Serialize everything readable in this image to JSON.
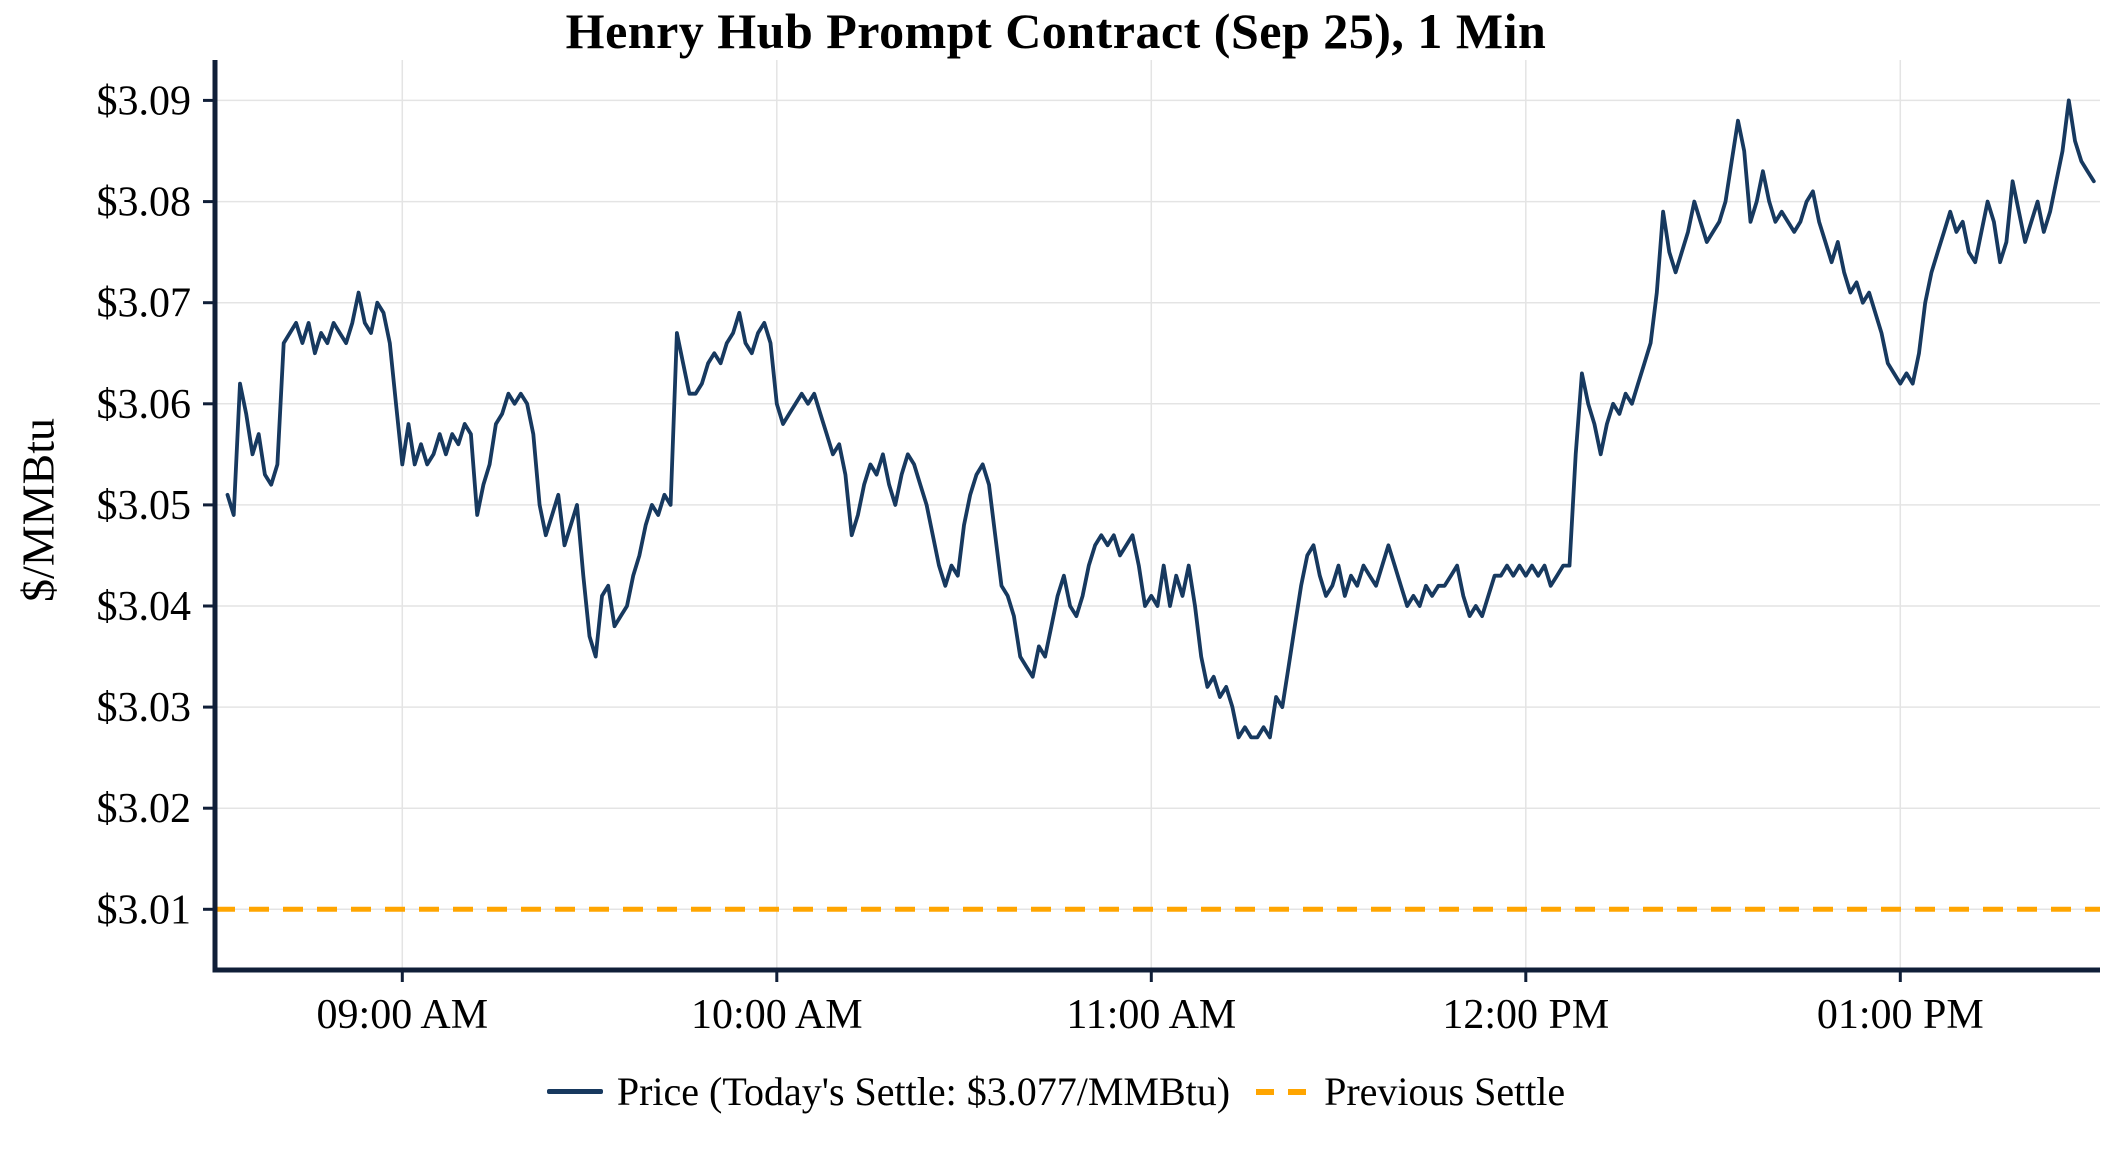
{
  "chart_data": {
    "type": "line",
    "title": "Henry Hub Prompt Contract (Sep 25), 1 Min",
    "xlabel": "",
    "ylabel": "$/MMBtu",
    "grid": true,
    "legend_position": "bottom",
    "x_unit": "minutes after 08:30 AM",
    "xlim": [
      0,
      302
    ],
    "ylim": [
      3.004,
      3.094
    ],
    "x_ticks": [
      {
        "t": 30,
        "label": "09:00 AM"
      },
      {
        "t": 90,
        "label": "10:00 AM"
      },
      {
        "t": 150,
        "label": "11:00 AM"
      },
      {
        "t": 210,
        "label": "12:00 PM"
      },
      {
        "t": 270,
        "label": "01:00 PM"
      }
    ],
    "y_ticks": [
      {
        "v": 3.01,
        "label": "$3.01"
      },
      {
        "v": 3.02,
        "label": "$3.02"
      },
      {
        "v": 3.03,
        "label": "$3.03"
      },
      {
        "v": 3.04,
        "label": "$3.04"
      },
      {
        "v": 3.05,
        "label": "$3.05"
      },
      {
        "v": 3.06,
        "label": "$3.06"
      },
      {
        "v": 3.07,
        "label": "$3.07"
      },
      {
        "v": 3.08,
        "label": "$3.08"
      },
      {
        "v": 3.09,
        "label": "$3.09"
      }
    ],
    "colors": {
      "axis": "#101f38",
      "grid": "#e4e4e4",
      "text": "#000000"
    },
    "todays_settle": 3.077,
    "previous_settle": 3.01,
    "series": [
      {
        "name": "Price (Today's Settle: $3.077/MMBtu)",
        "color": "#17395f",
        "style": "solid",
        "start_minute": 2,
        "interval_minutes": 1,
        "values": [
          3.051,
          3.049,
          3.062,
          3.059,
          3.055,
          3.057,
          3.053,
          3.052,
          3.054,
          3.066,
          3.067,
          3.068,
          3.066,
          3.068,
          3.065,
          3.067,
          3.066,
          3.068,
          3.067,
          3.066,
          3.068,
          3.071,
          3.068,
          3.067,
          3.07,
          3.069,
          3.066,
          3.06,
          3.054,
          3.058,
          3.054,
          3.056,
          3.054,
          3.055,
          3.057,
          3.055,
          3.057,
          3.056,
          3.058,
          3.057,
          3.049,
          3.052,
          3.054,
          3.058,
          3.059,
          3.061,
          3.06,
          3.061,
          3.06,
          3.057,
          3.05,
          3.047,
          3.049,
          3.051,
          3.046,
          3.048,
          3.05,
          3.043,
          3.037,
          3.035,
          3.041,
          3.042,
          3.038,
          3.039,
          3.04,
          3.043,
          3.045,
          3.048,
          3.05,
          3.049,
          3.051,
          3.05,
          3.067,
          3.064,
          3.061,
          3.061,
          3.062,
          3.064,
          3.065,
          3.064,
          3.066,
          3.067,
          3.069,
          3.066,
          3.065,
          3.067,
          3.068,
          3.066,
          3.06,
          3.058,
          3.059,
          3.06,
          3.061,
          3.06,
          3.061,
          3.059,
          3.057,
          3.055,
          3.056,
          3.053,
          3.047,
          3.049,
          3.052,
          3.054,
          3.053,
          3.055,
          3.052,
          3.05,
          3.053,
          3.055,
          3.054,
          3.052,
          3.05,
          3.047,
          3.044,
          3.042,
          3.044,
          3.043,
          3.048,
          3.051,
          3.053,
          3.054,
          3.052,
          3.047,
          3.042,
          3.041,
          3.039,
          3.035,
          3.034,
          3.033,
          3.036,
          3.035,
          3.038,
          3.041,
          3.043,
          3.04,
          3.039,
          3.041,
          3.044,
          3.046,
          3.047,
          3.046,
          3.047,
          3.045,
          3.046,
          3.047,
          3.044,
          3.04,
          3.041,
          3.04,
          3.044,
          3.04,
          3.043,
          3.041,
          3.044,
          3.04,
          3.035,
          3.032,
          3.033,
          3.031,
          3.032,
          3.03,
          3.027,
          3.028,
          3.027,
          3.027,
          3.028,
          3.027,
          3.031,
          3.03,
          3.034,
          3.038,
          3.042,
          3.045,
          3.046,
          3.043,
          3.041,
          3.042,
          3.044,
          3.041,
          3.043,
          3.042,
          3.044,
          3.043,
          3.042,
          3.044,
          3.046,
          3.044,
          3.042,
          3.04,
          3.041,
          3.04,
          3.042,
          3.041,
          3.042,
          3.042,
          3.043,
          3.044,
          3.041,
          3.039,
          3.04,
          3.039,
          3.041,
          3.043,
          3.043,
          3.044,
          3.043,
          3.044,
          3.043,
          3.044,
          3.043,
          3.044,
          3.042,
          3.043,
          3.044,
          3.044,
          3.055,
          3.063,
          3.06,
          3.058,
          3.055,
          3.058,
          3.06,
          3.059,
          3.061,
          3.06,
          3.062,
          3.064,
          3.066,
          3.071,
          3.079,
          3.075,
          3.073,
          3.075,
          3.077,
          3.08,
          3.078,
          3.076,
          3.077,
          3.078,
          3.08,
          3.084,
          3.088,
          3.085,
          3.078,
          3.08,
          3.083,
          3.08,
          3.078,
          3.079,
          3.078,
          3.077,
          3.078,
          3.08,
          3.081,
          3.078,
          3.076,
          3.074,
          3.076,
          3.073,
          3.071,
          3.072,
          3.07,
          3.071,
          3.069,
          3.067,
          3.064,
          3.063,
          3.062,
          3.063,
          3.062,
          3.065,
          3.07,
          3.073,
          3.075,
          3.077,
          3.079,
          3.077,
          3.078,
          3.075,
          3.074,
          3.077,
          3.08,
          3.078,
          3.074,
          3.076,
          3.082,
          3.079,
          3.076,
          3.078,
          3.08,
          3.077,
          3.079,
          3.082,
          3.085,
          3.09,
          3.086,
          3.084,
          3.083,
          3.082
        ]
      },
      {
        "name": "Previous Settle",
        "color": "#FFA500",
        "style": "dashed",
        "constant_value": 3.01
      }
    ]
  }
}
